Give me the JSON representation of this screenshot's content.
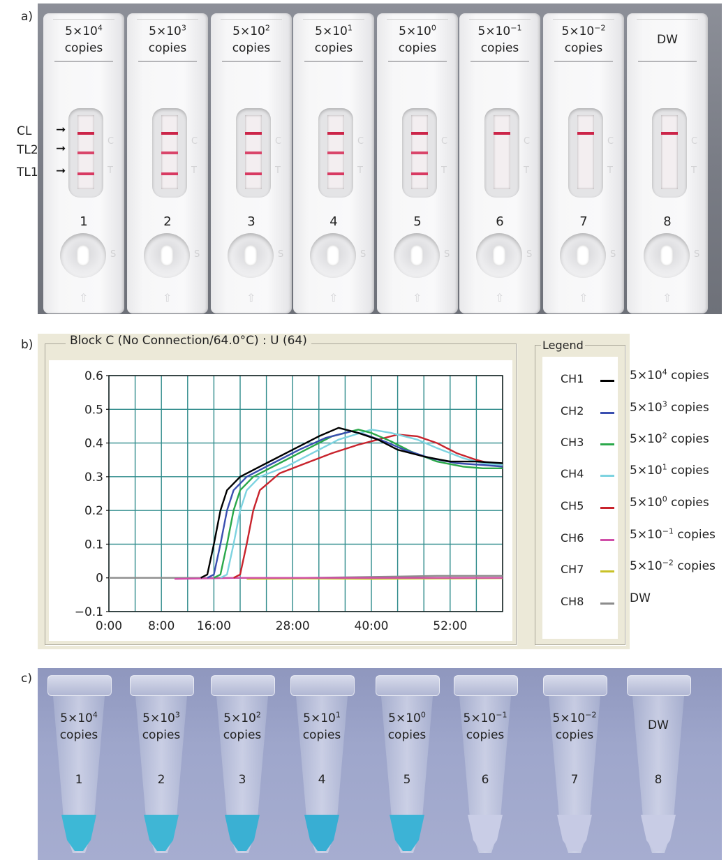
{
  "panels": {
    "a": "a)",
    "b": "b)",
    "c": "c)"
  },
  "panel_a": {
    "side_labels": [
      "CL",
      "TL2",
      "TL1"
    ],
    "strip_marks": {
      "control": "C",
      "test": "T",
      "sample": "S"
    },
    "strips": [
      {
        "num": "1",
        "base": "5×10",
        "exp": "4",
        "unit": "copies",
        "lines": [
          "CL",
          "TL2",
          "TL1"
        ]
      },
      {
        "num": "2",
        "base": "5×10",
        "exp": "3",
        "unit": "copies",
        "lines": [
          "CL",
          "TL2",
          "TL1"
        ]
      },
      {
        "num": "3",
        "base": "5×10",
        "exp": "2",
        "unit": "copies",
        "lines": [
          "CL",
          "TL2",
          "TL1"
        ]
      },
      {
        "num": "4",
        "base": "5×10",
        "exp": "1",
        "unit": "copies",
        "lines": [
          "CL",
          "TL2",
          "TL1"
        ]
      },
      {
        "num": "5",
        "base": "5×10",
        "exp": "0",
        "unit": "copies",
        "lines": [
          "CL",
          "TL2",
          "TL1"
        ]
      },
      {
        "num": "6",
        "base": "5×10",
        "exp": "−1",
        "unit": "copies",
        "lines": [
          "CL"
        ]
      },
      {
        "num": "7",
        "base": "5×10",
        "exp": "−2",
        "unit": "copies",
        "lines": [
          "CL"
        ]
      },
      {
        "num": "8",
        "base": "DW",
        "exp": "",
        "unit": "",
        "lines": [
          "CL"
        ]
      }
    ]
  },
  "panel_b": {
    "frame_title": "Block C (No Connection/64.0°C) : U (64)",
    "legend_title": "Legend",
    "legend": [
      {
        "ch": "CH1",
        "color": "#000000",
        "base": "5×10",
        "exp": "4",
        "unit": " copies"
      },
      {
        "ch": "CH2",
        "color": "#3a4fb0",
        "base": "5×10",
        "exp": "3",
        "unit": " copies"
      },
      {
        "ch": "CH3",
        "color": "#2aa84a",
        "base": "5×10",
        "exp": "2",
        "unit": " copies"
      },
      {
        "ch": "CH4",
        "color": "#7dd3e0",
        "base": "5×10",
        "exp": "1",
        "unit": " copies"
      },
      {
        "ch": "CH5",
        "color": "#c8232c",
        "base": "5×10",
        "exp": "0",
        "unit": " copies"
      },
      {
        "ch": "CH6",
        "color": "#d04ea8",
        "base": "5×10",
        "exp": "−1",
        "unit": " copies"
      },
      {
        "ch": "CH7",
        "color": "#c9c227",
        "base": "5×10",
        "exp": "−2",
        "unit": " copies"
      },
      {
        "ch": "CH8",
        "color": "#8c8c8c",
        "base": "DW",
        "exp": "",
        "unit": ""
      }
    ]
  },
  "chart_data": {
    "type": "line",
    "title": "Block C (No Connection/64.0°C) : U (64)",
    "xlabel": "",
    "ylabel": "",
    "xlim": [
      0,
      60
    ],
    "ylim": [
      -0.1,
      0.6
    ],
    "xticks": [
      0,
      8,
      16,
      28,
      40,
      52
    ],
    "xtick_labels": [
      "0:00",
      "8:00",
      "16:00",
      "28:00",
      "40:00",
      "52:00"
    ],
    "yticks": [
      -0.1,
      0,
      0.1,
      0.2,
      0.3,
      0.4,
      0.5,
      0.6
    ],
    "ytick_labels": [
      "−0.1",
      "0",
      "0.1",
      "0.2",
      "0.3",
      "0.4",
      "0.5",
      "0.6"
    ],
    "grid": true,
    "legend_position": "right",
    "series": [
      {
        "name": "CH1",
        "color": "#000000",
        "points": [
          [
            14,
            0
          ],
          [
            15,
            0.01
          ],
          [
            16,
            0.1
          ],
          [
            17,
            0.2
          ],
          [
            18,
            0.26
          ],
          [
            20,
            0.3
          ],
          [
            24,
            0.34
          ],
          [
            28,
            0.38
          ],
          [
            32,
            0.42
          ],
          [
            35,
            0.445
          ],
          [
            38,
            0.43
          ],
          [
            41,
            0.41
          ],
          [
            44,
            0.38
          ],
          [
            48,
            0.36
          ],
          [
            52,
            0.345
          ],
          [
            56,
            0.345
          ],
          [
            60,
            0.34
          ]
        ]
      },
      {
        "name": "CH2",
        "color": "#3a4fb0",
        "points": [
          [
            15,
            0
          ],
          [
            16,
            0.01
          ],
          [
            17,
            0.1
          ],
          [
            18,
            0.2
          ],
          [
            19,
            0.26
          ],
          [
            21,
            0.3
          ],
          [
            25,
            0.34
          ],
          [
            29,
            0.38
          ],
          [
            33,
            0.415
          ],
          [
            37,
            0.435
          ],
          [
            39,
            0.425
          ],
          [
            42,
            0.405
          ],
          [
            45,
            0.38
          ],
          [
            49,
            0.355
          ],
          [
            53,
            0.34
          ],
          [
            57,
            0.335
          ],
          [
            60,
            0.33
          ]
        ]
      },
      {
        "name": "CH3",
        "color": "#2aa84a",
        "points": [
          [
            16,
            0
          ],
          [
            17,
            0.01
          ],
          [
            18,
            0.1
          ],
          [
            19,
            0.2
          ],
          [
            20,
            0.26
          ],
          [
            22,
            0.3
          ],
          [
            26,
            0.34
          ],
          [
            30,
            0.38
          ],
          [
            34,
            0.42
          ],
          [
            38,
            0.44
          ],
          [
            40,
            0.43
          ],
          [
            43,
            0.405
          ],
          [
            46,
            0.375
          ],
          [
            50,
            0.345
          ],
          [
            54,
            0.33
          ],
          [
            57,
            0.325
          ],
          [
            60,
            0.325
          ]
        ]
      },
      {
        "name": "CH4",
        "color": "#7dd3e0",
        "points": [
          [
            17,
            0
          ],
          [
            18,
            0.01
          ],
          [
            19,
            0.1
          ],
          [
            20,
            0.2
          ],
          [
            21,
            0.26
          ],
          [
            23,
            0.3
          ],
          [
            27,
            0.33
          ],
          [
            31,
            0.37
          ],
          [
            35,
            0.41
          ],
          [
            40,
            0.44
          ],
          [
            43,
            0.43
          ],
          [
            47,
            0.41
          ],
          [
            50,
            0.385
          ],
          [
            54,
            0.355
          ],
          [
            57,
            0.34
          ],
          [
            60,
            0.335
          ]
        ]
      },
      {
        "name": "CH5",
        "color": "#c8232c",
        "points": [
          [
            19,
            0
          ],
          [
            20,
            0.01
          ],
          [
            21,
            0.1
          ],
          [
            22,
            0.2
          ],
          [
            23,
            0.26
          ],
          [
            26,
            0.31
          ],
          [
            30,
            0.34
          ],
          [
            34,
            0.37
          ],
          [
            38,
            0.395
          ],
          [
            41,
            0.41
          ],
          [
            44,
            0.425
          ],
          [
            47,
            0.42
          ],
          [
            50,
            0.4
          ],
          [
            53,
            0.37
          ],
          [
            56,
            0.35
          ],
          [
            60,
            0.33
          ]
        ]
      },
      {
        "name": "CH6",
        "color": "#d04ea8",
        "points": [
          [
            10,
            -0.003
          ],
          [
            20,
            0
          ],
          [
            30,
            0
          ],
          [
            40,
            0
          ],
          [
            50,
            0
          ],
          [
            60,
            0
          ]
        ]
      },
      {
        "name": "CH7",
        "color": "#c9c227",
        "points": [
          [
            21,
            -0.003
          ],
          [
            30,
            -0.002
          ],
          [
            40,
            -0.003
          ],
          [
            50,
            -0.002
          ],
          [
            60,
            -0.001
          ]
        ]
      },
      {
        "name": "CH8",
        "color": "#8c8c8c",
        "points": [
          [
            0,
            0
          ],
          [
            15,
            0
          ],
          [
            30,
            0
          ],
          [
            44,
            0.004
          ],
          [
            50,
            0.006
          ],
          [
            60,
            0.006
          ]
        ]
      }
    ]
  },
  "panel_c": {
    "tubes": [
      {
        "num": "1",
        "base": "5×10",
        "exp": "4",
        "unit": "copies",
        "color": "#3db8d6"
      },
      {
        "num": "2",
        "base": "5×10",
        "exp": "3",
        "unit": "copies",
        "color": "#3fb6d5"
      },
      {
        "num": "3",
        "base": "5×10",
        "exp": "2",
        "unit": "copies",
        "color": "#3ab0d3"
      },
      {
        "num": "4",
        "base": "5×10",
        "exp": "1",
        "unit": "copies",
        "color": "#38aed3"
      },
      {
        "num": "5",
        "base": "5×10",
        "exp": "0",
        "unit": "copies",
        "color": "#3cb3d6"
      },
      {
        "num": "6",
        "base": "5×10",
        "exp": "−1",
        "unit": "copies",
        "color": "#c9cde6"
      },
      {
        "num": "7",
        "base": "5×10",
        "exp": "−2",
        "unit": "copies",
        "color": "#c6cae4"
      },
      {
        "num": "8",
        "base": "DW",
        "exp": "",
        "unit": "",
        "color": "#c8cce5"
      }
    ]
  }
}
